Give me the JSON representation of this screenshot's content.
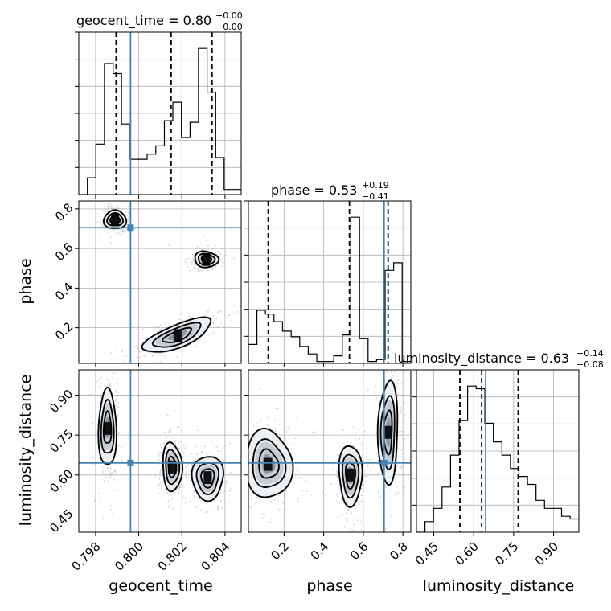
{
  "chart_data": {
    "type": "corner",
    "parameters": [
      "geocent_time",
      "phase",
      "luminosity_distance"
    ],
    "titles": [
      {
        "param": "geocent_time",
        "text": "geocent_time = 0.80",
        "sup": "+0.00",
        "sub": "−0.00"
      },
      {
        "param": "phase",
        "text": "phase = 0.53",
        "sup": "+0.19",
        "sub": "−0.41"
      },
      {
        "param": "luminosity_distance",
        "text": "luminosity_distance = 0.63",
        "sup": "+0.14",
        "sub": "−0.08"
      }
    ],
    "axes": {
      "geocent_time": {
        "range": [
          0.79722,
          0.80475
        ],
        "ticks": [
          0.798,
          0.8,
          0.802,
          0.804
        ],
        "tick_labels": [
          "0.798",
          "0.800",
          "0.802",
          "0.804"
        ]
      },
      "phase": {
        "range": [
          0.02,
          0.84
        ],
        "ticks": [
          0.2,
          0.4,
          0.6,
          0.8
        ],
        "tick_labels": [
          "0.2",
          "0.4",
          "0.6",
          "0.8"
        ]
      },
      "luminosity_distance": {
        "range": [
          0.385,
          0.995
        ],
        "ticks": [
          0.45,
          0.6,
          0.75,
          0.9
        ],
        "tick_labels": [
          "0.45",
          "0.60",
          "0.75",
          "0.90"
        ]
      }
    },
    "truths": {
      "geocent_time": 0.79962,
      "phase": 0.705,
      "luminosity_distance": 0.645
    },
    "quantiles": {
      "geocent_time": [
        0.79895,
        0.8015,
        0.8034
      ],
      "phase": [
        0.12,
        0.53,
        0.725
      ],
      "luminosity_distance": [
        0.548,
        0.63,
        0.767
      ]
    },
    "histograms": {
      "geocent_time": {
        "edges": [
          0.79722,
          0.79762,
          0.79801,
          0.79841,
          0.79881,
          0.7992,
          0.7996,
          0.79999,
          0.80039,
          0.80079,
          0.80119,
          0.80158,
          0.80198,
          0.80238,
          0.80277,
          0.80317,
          0.80357,
          0.80396,
          0.80436,
          0.80475
        ],
        "counts": [
          0,
          0.1,
          0.3,
          0.78,
          0.72,
          0.42,
          0.21,
          0.21,
          0.24,
          0.29,
          0.44,
          0.55,
          0.34,
          0.43,
          0.87,
          0.61,
          0.22,
          0.03,
          0.03
        ]
      },
      "phase": {
        "edges": [
          0.02,
          0.063,
          0.106,
          0.149,
          0.192,
          0.236,
          0.279,
          0.322,
          0.365,
          0.408,
          0.451,
          0.494,
          0.537,
          0.581,
          0.624,
          0.667,
          0.71,
          0.753,
          0.796,
          0.84
        ],
        "counts": [
          0.1,
          0.28,
          0.26,
          0.22,
          0.17,
          0.14,
          0.09,
          0.05,
          0.01,
          0.01,
          0.04,
          0.15,
          0.77,
          0.13,
          0.01,
          0.02,
          0.49,
          0.53,
          0.01
        ]
      },
      "luminosity_distance": {
        "edges": [
          0.385,
          0.417,
          0.449,
          0.481,
          0.513,
          0.545,
          0.577,
          0.609,
          0.642,
          0.674,
          0.706,
          0.738,
          0.77,
          0.802,
          0.834,
          0.866,
          0.898,
          0.93,
          0.962,
          0.995
        ],
        "counts": [
          0,
          0.04,
          0.09,
          0.17,
          0.29,
          0.42,
          0.55,
          0.54,
          0.41,
          0.34,
          0.29,
          0.24,
          0.21,
          0.18,
          0.12,
          0.09,
          0.09,
          0.06,
          0.05
        ]
      }
    },
    "contours_2d": [
      {
        "x": "geocent_time",
        "y": "phase",
        "blobs": [
          {
            "center": [
              0.7989,
              0.745
            ],
            "radii": [
              0.0005,
              0.048
            ],
            "angle": 0
          },
          {
            "center": [
              0.80313,
              0.545
            ],
            "radii": [
              0.00055,
              0.04
            ],
            "angle": 0
          },
          {
            "center": [
              0.8018,
              0.16
            ],
            "radii": [
              0.00175,
              0.055
            ],
            "angle": -0.38
          }
        ]
      },
      {
        "x": "geocent_time",
        "y": "luminosity_distance",
        "blobs": [
          {
            "center": [
              0.79855,
              0.775
            ],
            "radii": [
              0.0004,
              0.15
            ],
            "angle": 0
          },
          {
            "center": [
              0.80155,
              0.63
            ],
            "radii": [
              0.00045,
              0.09
            ],
            "angle": 0
          },
          {
            "center": [
              0.8032,
              0.59
            ],
            "radii": [
              0.00075,
              0.08
            ],
            "angle": 0
          }
        ]
      },
      {
        "x": "phase",
        "y": "luminosity_distance",
        "blobs": [
          {
            "center": [
              0.12,
              0.64
            ],
            "radii": [
              0.115,
              0.13
            ],
            "angle": 0
          },
          {
            "center": [
              0.535,
              0.6
            ],
            "radii": [
              0.06,
              0.11
            ],
            "angle": 0
          },
          {
            "center": [
              0.725,
              0.76
            ],
            "radii": [
              0.05,
              0.19
            ],
            "angle": 0
          }
        ]
      }
    ]
  }
}
